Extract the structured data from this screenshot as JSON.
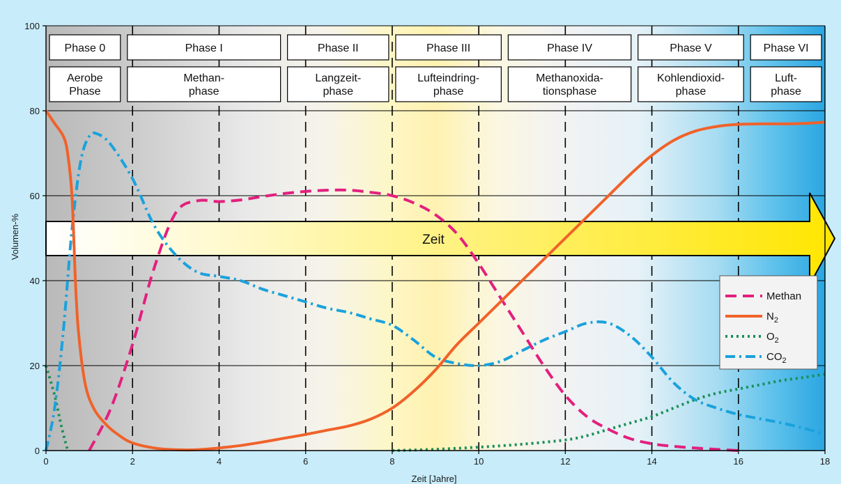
{
  "chart_data": {
    "type": "line",
    "xlabel": "Zeit [Jahre]",
    "ylabel": "Volumen-%",
    "xlim": [
      0,
      18
    ],
    "ylim": [
      0,
      100
    ],
    "xticks": [
      "0",
      "2",
      "4",
      "6",
      "8",
      "10",
      "12",
      "14",
      "16",
      "18"
    ],
    "yticks": [
      "0",
      "20",
      "40",
      "60",
      "80",
      "100"
    ],
    "phase_boundaries": [
      0,
      1.8,
      5.5,
      8,
      10.6,
      13.6,
      16.2
    ],
    "phases": [
      {
        "name": "Phase 0",
        "description": [
          "Aerobe",
          "Phase"
        ]
      },
      {
        "name": "Phase I",
        "description": [
          "Methan-",
          "phase"
        ]
      },
      {
        "name": "Phase II",
        "description": [
          "Langzeit-",
          "phase"
        ]
      },
      {
        "name": "Phase III",
        "description": [
          "Lufteindring-",
          "phase"
        ]
      },
      {
        "name": "Phase IV",
        "description": [
          "Methanoxida-",
          "tionsphase"
        ]
      },
      {
        "name": "Phase V",
        "description": [
          "Kohlendioxid-",
          "phase"
        ]
      },
      {
        "name": "Phase VI",
        "description": [
          "Luft-",
          "phase"
        ]
      }
    ],
    "arrow_label": "Zeit",
    "legend_position": "right",
    "series": [
      {
        "name": "Methan",
        "legend_label": "Methan",
        "legend_sub": "",
        "color": "#e2207e",
        "style": "dashed",
        "points": [
          [
            1,
            0
          ],
          [
            1.5,
            10
          ],
          [
            2,
            25
          ],
          [
            2.5,
            43
          ],
          [
            3,
            56
          ],
          [
            3.5,
            58.8
          ],
          [
            4,
            58.6
          ],
          [
            4.5,
            59
          ],
          [
            5,
            59.8
          ],
          [
            5.5,
            60.5
          ],
          [
            6,
            61
          ],
          [
            6.5,
            61.3
          ],
          [
            7,
            61.3
          ],
          [
            7.5,
            60.8
          ],
          [
            8,
            60
          ],
          [
            8.5,
            58.3
          ],
          [
            9,
            55.5
          ],
          [
            9.5,
            51
          ],
          [
            10,
            44
          ],
          [
            10.5,
            36
          ],
          [
            11,
            28
          ],
          [
            11.5,
            20
          ],
          [
            12,
            13
          ],
          [
            12.5,
            8
          ],
          [
            13,
            5
          ],
          [
            13.5,
            2.8
          ],
          [
            14,
            1.6
          ],
          [
            14.5,
            1
          ],
          [
            15,
            0.6
          ],
          [
            15.5,
            0.3
          ],
          [
            16,
            0
          ]
        ]
      },
      {
        "name": "N2",
        "legend_label": "N",
        "legend_sub": "2",
        "color": "#f0622a",
        "style": "solid",
        "points": [
          [
            0,
            80
          ],
          [
            0.2,
            77
          ],
          [
            0.4,
            74
          ],
          [
            0.5,
            70
          ],
          [
            0.6,
            60
          ],
          [
            0.68,
            40
          ],
          [
            0.75,
            28
          ],
          [
            0.9,
            16
          ],
          [
            1.1,
            10
          ],
          [
            1.4,
            6
          ],
          [
            1.7,
            3.5
          ],
          [
            2,
            1.8
          ],
          [
            2.5,
            0.6
          ],
          [
            3,
            0.2
          ],
          [
            3.5,
            0.2
          ],
          [
            4,
            0.6
          ],
          [
            4.5,
            1.2
          ],
          [
            5,
            2
          ],
          [
            5.5,
            2.9
          ],
          [
            6,
            3.8
          ],
          [
            6.5,
            4.8
          ],
          [
            7,
            5.8
          ],
          [
            7.5,
            7.4
          ],
          [
            8,
            10
          ],
          [
            8.5,
            14
          ],
          [
            9,
            19
          ],
          [
            9.5,
            25
          ],
          [
            10,
            30
          ],
          [
            10.5,
            35
          ],
          [
            11,
            40
          ],
          [
            11.5,
            45
          ],
          [
            12,
            50
          ],
          [
            12.5,
            55
          ],
          [
            13,
            60
          ],
          [
            13.5,
            65
          ],
          [
            14,
            69.5
          ],
          [
            14.5,
            73
          ],
          [
            15,
            75.2
          ],
          [
            15.5,
            76.3
          ],
          [
            16,
            76.8
          ],
          [
            16.5,
            76.9
          ],
          [
            17,
            76.9
          ],
          [
            17.5,
            77
          ],
          [
            18,
            77.3
          ]
        ]
      },
      {
        "name": "O2",
        "legend_label": "O",
        "legend_sub": "2",
        "color": "#1a8f5a",
        "style": "dotted",
        "points": [
          [
            0,
            20
          ],
          [
            0.2,
            13
          ],
          [
            0.35,
            6
          ],
          [
            0.5,
            0
          ]
        ],
        "points2": [
          [
            8,
            0
          ],
          [
            9,
            0.3
          ],
          [
            10,
            0.8
          ],
          [
            11,
            1.5
          ],
          [
            12,
            2.5
          ],
          [
            12.5,
            3.5
          ],
          [
            13,
            5
          ],
          [
            13.5,
            6.5
          ],
          [
            14,
            8
          ],
          [
            14.5,
            10
          ],
          [
            15,
            12
          ],
          [
            15.5,
            13.5
          ],
          [
            16,
            14.5
          ],
          [
            16.5,
            15.5
          ],
          [
            17,
            16.5
          ],
          [
            17.5,
            17.2
          ],
          [
            18,
            18
          ]
        ]
      },
      {
        "name": "CO2",
        "legend_label": "CO",
        "legend_sub": "2",
        "color": "#1aa2dc",
        "style": "dashdot",
        "points": [
          [
            0,
            0
          ],
          [
            0.2,
            10
          ],
          [
            0.4,
            28
          ],
          [
            0.6,
            52
          ],
          [
            0.8,
            68
          ],
          [
            1,
            74
          ],
          [
            1.2,
            74.5
          ],
          [
            1.5,
            72
          ],
          [
            2,
            64
          ],
          [
            2.5,
            53
          ],
          [
            3,
            46
          ],
          [
            3.5,
            42
          ],
          [
            4,
            41
          ],
          [
            4.5,
            40
          ],
          [
            5,
            38
          ],
          [
            5.5,
            36.5
          ],
          [
            6,
            35
          ],
          [
            6.5,
            33.5
          ],
          [
            7,
            32.5
          ],
          [
            7.5,
            31
          ],
          [
            8,
            29.5
          ],
          [
            8.5,
            26
          ],
          [
            9,
            22
          ],
          [
            9.5,
            20.5
          ],
          [
            10,
            20
          ],
          [
            10.5,
            21
          ],
          [
            11,
            23.5
          ],
          [
            11.5,
            26
          ],
          [
            12,
            28
          ],
          [
            12.5,
            30
          ],
          [
            13,
            30
          ],
          [
            13.5,
            27
          ],
          [
            14,
            22
          ],
          [
            14.5,
            16
          ],
          [
            15,
            12
          ],
          [
            15.5,
            10
          ],
          [
            16,
            8.5
          ],
          [
            16.5,
            7.5
          ],
          [
            17,
            6.5
          ],
          [
            17.5,
            5.3
          ],
          [
            18,
            3.8
          ]
        ]
      }
    ]
  }
}
